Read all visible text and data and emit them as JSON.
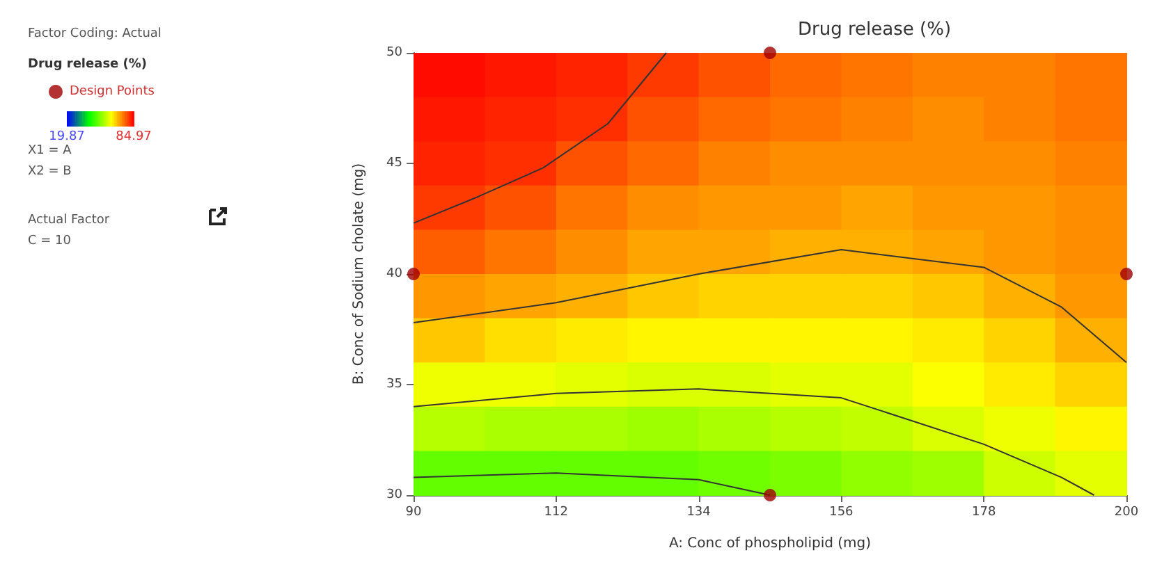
{
  "chart_data": {
    "type": "heatmap",
    "title": "Drug release (%)",
    "xlabel": "A: Conc of phospholipid (mg)",
    "ylabel": "B: Conc of Sodium cholate (mg)",
    "legend_title": "Drug release (%)",
    "legend": "top left",
    "annotations": [
      "Factor Coding: Actual",
      "X1 = A",
      "X2 = B",
      "Actual Factor",
      "C = 10"
    ],
    "x": [
      95.5,
      106.5,
      117.5,
      128.5,
      139.5,
      150.5,
      161.5,
      172.5,
      183.5,
      194.5
    ],
    "y": [
      49,
      47,
      45,
      43,
      41,
      39,
      37,
      35,
      33,
      31
    ],
    "cells": [
      [
        84,
        83,
        82,
        80,
        78,
        76,
        75,
        74,
        74,
        75
      ],
      [
        83,
        82,
        81,
        78,
        76,
        75,
        74,
        73,
        74,
        75
      ],
      [
        82,
        81,
        78,
        76,
        74,
        73,
        73,
        73,
        73,
        74
      ],
      [
        80,
        78,
        75,
        73,
        72,
        72,
        71,
        72,
        72,
        73
      ],
      [
        77,
        75,
        73,
        71,
        71,
        70,
        70,
        71,
        72,
        73
      ],
      [
        72,
        71,
        70,
        68,
        67,
        67,
        67,
        68,
        70,
        72
      ],
      [
        68,
        66,
        65,
        64,
        64,
        64,
        64,
        65,
        67,
        70
      ],
      [
        62,
        62,
        61,
        60,
        60,
        61,
        61,
        63,
        65,
        67
      ],
      [
        57,
        56,
        56,
        55,
        56,
        57,
        58,
        60,
        62,
        64
      ],
      [
        50,
        50,
        50,
        50,
        51,
        52,
        54,
        55,
        59,
        61
      ]
    ],
    "clim": [
      19.87,
      84.97
    ],
    "cticks": [
      19.87,
      84.97
    ],
    "series": [
      {
        "type": "line",
        "color": "#333333",
        "x": [
          90,
          100,
          110,
          120,
          129
        ],
        "values": [
          42.3,
          43.5,
          44.8,
          46.8,
          50
        ]
      },
      {
        "type": "line",
        "color": "#333333",
        "x": [
          90,
          112,
          134,
          156,
          178,
          190,
          200
        ],
        "values": [
          37.8,
          38.7,
          40,
          41.1,
          40.3,
          38.5,
          36
        ]
      },
      {
        "type": "line",
        "color": "#333333",
        "x": [
          90,
          112,
          134,
          156,
          178,
          190,
          195
        ],
        "values": [
          34,
          34.6,
          34.8,
          34.4,
          32.3,
          30.8,
          30
        ]
      },
      {
        "type": "line",
        "color": "#333333",
        "x": [
          90,
          112,
          134,
          145
        ],
        "values": [
          30.8,
          31,
          30.7,
          30
        ]
      },
      {
        "type": "scatter",
        "name": "Design Points",
        "color": "#a00000",
        "x": [
          90,
          145,
          145,
          200
        ],
        "values": [
          40,
          50,
          30,
          40
        ]
      }
    ],
    "xlim": [
      90,
      200
    ],
    "xticks": [
      90,
      112,
      134,
      156,
      178,
      200
    ],
    "ylim": [
      30,
      50
    ],
    "yticks": [
      30,
      35,
      40,
      45,
      50
    ],
    "grid": false
  }
}
